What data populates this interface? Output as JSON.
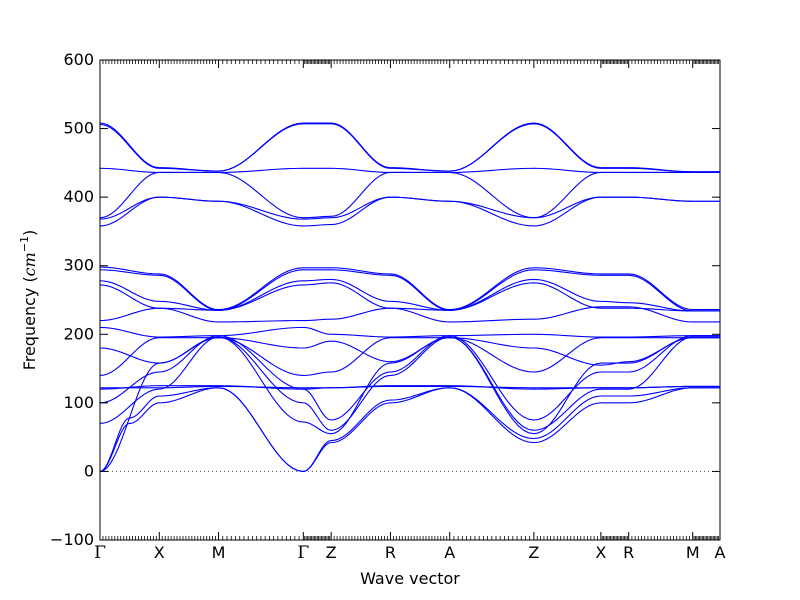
{
  "chart_data": {
    "type": "line",
    "xlabel": "Wave vector",
    "ylabel_text": "Frequency (",
    "ylabel_unit": "cm",
    "ylabel_exp": "−1",
    "ylabel_close": ")",
    "ylim": [
      -100,
      600
    ],
    "y_ticks": [
      -100,
      0,
      100,
      200,
      300,
      400,
      500,
      600
    ],
    "y_tick_labels": [
      "−100",
      "0",
      "100",
      "200",
      "300",
      "400",
      "500",
      "600"
    ],
    "xlim": [
      0,
      10.46
    ],
    "grid": false,
    "line_color": "#0000ff",
    "zero_line_color": "#555555",
    "x_path_points": [
      {
        "label": "Γ",
        "x": 0.0
      },
      {
        "label": "X",
        "x": 1.0
      },
      {
        "label": "M",
        "x": 2.0
      },
      {
        "label": "Γ",
        "x": 3.43
      },
      {
        "label": "Z",
        "x": 3.9
      },
      {
        "label": "R",
        "x": 4.9
      },
      {
        "label": "A",
        "x": 5.9
      },
      {
        "label": "Z",
        "x": 7.32
      },
      {
        "label": "X",
        "x": 8.45
      },
      {
        "label": "R",
        "x": 8.92
      },
      {
        "label": "M",
        "x": 10.0
      },
      {
        "label": "A",
        "x": 10.46
      }
    ],
    "segment_ends": [
      [
        0.0,
        1.0
      ],
      [
        1.0,
        2.0
      ],
      [
        2.0,
        3.43
      ],
      [
        3.43,
        3.9
      ],
      [
        3.9,
        4.9
      ],
      [
        4.9,
        5.9
      ],
      [
        5.9,
        7.32
      ],
      [
        7.32,
        8.45
      ],
      [
        8.45,
        8.92
      ],
      [
        8.92,
        10.0
      ],
      [
        10.0,
        10.46
      ]
    ],
    "series": [
      {
        "values": [
          [
            0.0,
            0
          ],
          [
            0.5,
            70
          ],
          [
            1.0,
            100
          ],
          [
            2.0,
            122
          ],
          [
            3.43,
            0
          ],
          [
            3.9,
            42
          ],
          [
            4.9,
            100
          ],
          [
            5.9,
            122
          ],
          [
            7.32,
            42
          ],
          [
            8.45,
            100
          ],
          [
            8.92,
            100
          ],
          [
            10.0,
            122
          ],
          [
            10.46,
            122
          ]
        ]
      },
      {
        "values": [
          [
            0.0,
            0
          ],
          [
            0.5,
            78
          ],
          [
            1.0,
            110
          ],
          [
            2.0,
            122
          ],
          [
            3.43,
            0
          ],
          [
            3.9,
            45
          ],
          [
            4.9,
            104
          ],
          [
            5.9,
            122
          ],
          [
            7.32,
            48
          ],
          [
            8.45,
            110
          ],
          [
            8.92,
            110
          ],
          [
            10.0,
            122
          ],
          [
            10.46,
            122
          ]
        ]
      },
      {
        "values": [
          [
            0.0,
            0
          ],
          [
            1.0,
            158
          ],
          [
            2.0,
            196
          ],
          [
            3.43,
            72
          ],
          [
            3.9,
            55
          ],
          [
            4.9,
            158
          ],
          [
            5.9,
            196
          ],
          [
            7.32,
            55
          ],
          [
            8.45,
            158
          ],
          [
            8.92,
            158
          ],
          [
            10.0,
            196
          ],
          [
            10.46,
            196
          ]
        ]
      },
      {
        "values": [
          [
            0.0,
            70
          ],
          [
            1.0,
            120
          ],
          [
            2.0,
            196
          ],
          [
            3.43,
            100
          ],
          [
            3.9,
            60
          ],
          [
            4.9,
            140
          ],
          [
            5.9,
            196
          ],
          [
            7.32,
            60
          ],
          [
            8.45,
            120
          ],
          [
            8.92,
            120
          ],
          [
            10.0,
            196
          ],
          [
            10.46,
            196
          ]
        ]
      },
      {
        "values": [
          [
            0.0,
            100
          ],
          [
            1.0,
            145
          ],
          [
            2.0,
            198
          ],
          [
            3.43,
            120
          ],
          [
            3.9,
            75
          ],
          [
            4.9,
            145
          ],
          [
            5.9,
            198
          ],
          [
            7.32,
            75
          ],
          [
            8.45,
            145
          ],
          [
            8.92,
            145
          ],
          [
            10.0,
            198
          ],
          [
            10.46,
            198
          ]
        ]
      },
      {
        "values": [
          [
            0.0,
            120
          ],
          [
            1.0,
            125
          ],
          [
            2.0,
            125
          ],
          [
            3.43,
            120
          ],
          [
            3.9,
            122
          ],
          [
            4.9,
            125
          ],
          [
            5.9,
            125
          ],
          [
            7.32,
            120
          ],
          [
            8.45,
            122
          ],
          [
            8.92,
            122
          ],
          [
            10.0,
            124
          ],
          [
            10.46,
            124
          ]
        ]
      },
      {
        "values": [
          [
            0.0,
            122
          ],
          [
            1.0,
            122
          ],
          [
            2.0,
            124
          ],
          [
            3.43,
            122
          ],
          [
            3.9,
            122
          ],
          [
            4.9,
            124
          ],
          [
            5.9,
            124
          ],
          [
            7.32,
            122
          ],
          [
            8.45,
            122
          ],
          [
            8.92,
            122
          ],
          [
            10.0,
            124
          ],
          [
            10.46,
            124
          ]
        ]
      },
      {
        "values": [
          [
            0.0,
            140
          ],
          [
            1.0,
            195
          ],
          [
            2.0,
            195
          ],
          [
            3.43,
            140
          ],
          [
            3.9,
            145
          ],
          [
            4.9,
            195
          ],
          [
            5.9,
            195
          ],
          [
            7.32,
            145
          ],
          [
            8.45,
            195
          ],
          [
            8.92,
            195
          ],
          [
            10.0,
            195
          ],
          [
            10.46,
            195
          ]
        ]
      },
      {
        "values": [
          [
            0.0,
            180
          ],
          [
            1.0,
            158
          ],
          [
            2.0,
            195
          ],
          [
            3.43,
            180
          ],
          [
            3.9,
            190
          ],
          [
            4.9,
            160
          ],
          [
            5.9,
            195
          ],
          [
            7.32,
            180
          ],
          [
            8.45,
            155
          ],
          [
            8.92,
            160
          ],
          [
            10.0,
            195
          ],
          [
            10.46,
            195
          ]
        ]
      },
      {
        "values": [
          [
            0.0,
            210
          ],
          [
            1.0,
            196
          ],
          [
            2.0,
            198
          ],
          [
            3.43,
            210
          ],
          [
            3.9,
            200
          ],
          [
            4.9,
            196
          ],
          [
            5.9,
            198
          ],
          [
            7.32,
            200
          ],
          [
            8.45,
            196
          ],
          [
            8.92,
            196
          ],
          [
            10.0,
            198
          ],
          [
            10.46,
            198
          ]
        ]
      },
      {
        "values": [
          [
            0.0,
            220
          ],
          [
            1.0,
            238
          ],
          [
            2.0,
            218
          ],
          [
            3.43,
            220
          ],
          [
            3.9,
            222
          ],
          [
            4.9,
            238
          ],
          [
            5.9,
            218
          ],
          [
            7.32,
            222
          ],
          [
            8.45,
            240
          ],
          [
            8.92,
            240
          ],
          [
            10.0,
            218
          ],
          [
            10.46,
            218
          ]
        ]
      },
      {
        "values": [
          [
            0.0,
            272
          ],
          [
            1.0,
            238
          ],
          [
            2.0,
            235
          ],
          [
            3.43,
            272
          ],
          [
            3.9,
            275
          ],
          [
            4.9,
            238
          ],
          [
            5.9,
            235
          ],
          [
            7.32,
            275
          ],
          [
            8.45,
            238
          ],
          [
            8.92,
            238
          ],
          [
            10.0,
            234
          ],
          [
            10.46,
            234
          ]
        ]
      },
      {
        "values": [
          [
            0.0,
            278
          ],
          [
            1.0,
            248
          ],
          [
            2.0,
            235
          ],
          [
            3.43,
            278
          ],
          [
            3.9,
            280
          ],
          [
            4.9,
            248
          ],
          [
            5.9,
            235
          ],
          [
            7.32,
            280
          ],
          [
            8.45,
            248
          ],
          [
            8.92,
            246
          ],
          [
            10.0,
            234
          ],
          [
            10.46,
            234
          ]
        ]
      },
      {
        "values": [
          [
            0.0,
            294
          ],
          [
            1.0,
            286
          ],
          [
            2.0,
            235
          ],
          [
            3.43,
            294
          ],
          [
            3.9,
            294
          ],
          [
            4.9,
            286
          ],
          [
            5.9,
            235
          ],
          [
            7.32,
            294
          ],
          [
            8.45,
            286
          ],
          [
            8.92,
            286
          ],
          [
            10.0,
            234
          ],
          [
            10.46,
            234
          ]
        ]
      },
      {
        "values": [
          [
            0.0,
            298
          ],
          [
            1.0,
            288
          ],
          [
            2.0,
            236
          ],
          [
            3.43,
            297
          ],
          [
            3.9,
            297
          ],
          [
            4.9,
            288
          ],
          [
            5.9,
            236
          ],
          [
            7.32,
            297
          ],
          [
            8.45,
            288
          ],
          [
            8.92,
            288
          ],
          [
            10.0,
            236
          ],
          [
            10.46,
            236
          ]
        ]
      },
      {
        "values": [
          [
            0.0,
            358
          ],
          [
            1.0,
            400
          ],
          [
            2.0,
            394
          ],
          [
            3.43,
            358
          ],
          [
            3.9,
            360
          ],
          [
            4.9,
            400
          ],
          [
            5.9,
            394
          ],
          [
            7.32,
            358
          ],
          [
            8.45,
            400
          ],
          [
            8.92,
            400
          ],
          [
            10.0,
            394
          ],
          [
            10.46,
            394
          ]
        ]
      },
      {
        "values": [
          [
            0.0,
            368
          ],
          [
            1.0,
            400
          ],
          [
            2.0,
            394
          ],
          [
            3.43,
            368
          ],
          [
            3.9,
            370
          ],
          [
            4.9,
            400
          ],
          [
            5.9,
            394
          ],
          [
            7.32,
            370
          ],
          [
            8.45,
            400
          ],
          [
            8.92,
            400
          ],
          [
            10.0,
            394
          ],
          [
            10.46,
            394
          ]
        ]
      },
      {
        "values": [
          [
            0.0,
            370
          ],
          [
            1.0,
            436
          ],
          [
            2.0,
            436
          ],
          [
            3.43,
            370
          ],
          [
            3.9,
            372
          ],
          [
            4.9,
            436
          ],
          [
            5.9,
            436
          ],
          [
            7.32,
            370
          ],
          [
            8.45,
            436
          ],
          [
            8.92,
            436
          ],
          [
            10.0,
            436
          ],
          [
            10.46,
            436
          ]
        ]
      },
      {
        "values": [
          [
            0.0,
            442
          ],
          [
            1.0,
            436
          ],
          [
            2.0,
            436
          ],
          [
            3.43,
            442
          ],
          [
            3.9,
            442
          ],
          [
            4.9,
            436
          ],
          [
            5.9,
            436
          ],
          [
            7.32,
            442
          ],
          [
            8.45,
            436
          ],
          [
            8.92,
            436
          ],
          [
            10.0,
            436
          ],
          [
            10.46,
            436
          ]
        ]
      },
      {
        "values": [
          [
            0.0,
            506
          ],
          [
            1.0,
            442
          ],
          [
            2.0,
            438
          ],
          [
            3.43,
            507
          ],
          [
            3.9,
            507
          ],
          [
            4.9,
            442
          ],
          [
            5.9,
            438
          ],
          [
            7.32,
            507
          ],
          [
            8.45,
            442
          ],
          [
            8.92,
            442
          ],
          [
            10.0,
            437
          ],
          [
            10.46,
            437
          ]
        ]
      },
      {
        "values": [
          [
            0.0,
            508
          ],
          [
            1.0,
            443
          ],
          [
            2.0,
            438
          ],
          [
            3.43,
            508
          ],
          [
            3.9,
            508
          ],
          [
            4.9,
            443
          ],
          [
            5.9,
            438
          ],
          [
            7.32,
            508
          ],
          [
            8.45,
            443
          ],
          [
            8.92,
            443
          ],
          [
            10.0,
            437
          ],
          [
            10.46,
            437
          ]
        ]
      }
    ]
  }
}
